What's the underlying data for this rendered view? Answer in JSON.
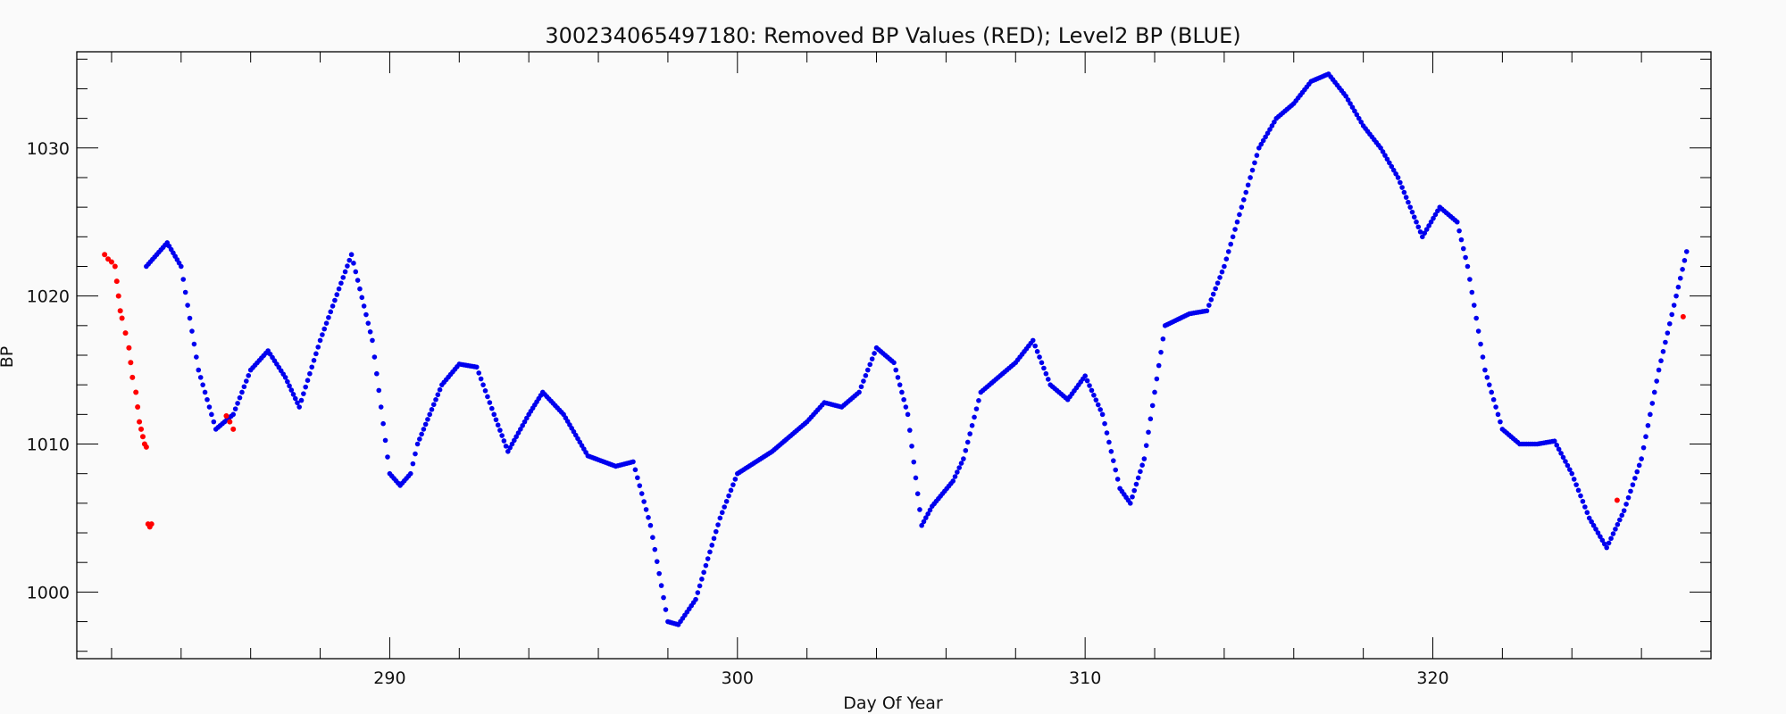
{
  "chart_data": {
    "type": "scatter",
    "title": "300234065497180: Removed BP Values (RED); Level2 BP (BLUE)",
    "xlabel": "Day Of Year",
    "ylabel": "BP",
    "xlim": [
      281.0,
      328.0
    ],
    "ylim": [
      995.5,
      1036.5
    ],
    "x_ticks": [
      290,
      300,
      310,
      320
    ],
    "y_ticks": [
      1000,
      1010,
      1020,
      1030
    ],
    "x_minor_step": 2,
    "y_minor_step": 2,
    "grid": false,
    "colors": {
      "removed": "#ff0000",
      "level2": "#0000ee"
    },
    "series": [
      {
        "name": "Removed BP Values (RED)",
        "color": "#ff0000",
        "points": [
          [
            281.8,
            1022.8
          ],
          [
            281.9,
            1022.5
          ],
          [
            282.0,
            1022.3
          ],
          [
            282.1,
            1022.0
          ],
          [
            282.15,
            1021.0
          ],
          [
            282.2,
            1020.0
          ],
          [
            282.25,
            1019.0
          ],
          [
            282.3,
            1018.5
          ],
          [
            282.4,
            1017.5
          ],
          [
            282.5,
            1016.5
          ],
          [
            282.55,
            1015.5
          ],
          [
            282.6,
            1014.5
          ],
          [
            282.7,
            1013.5
          ],
          [
            282.75,
            1012.5
          ],
          [
            282.8,
            1011.5
          ],
          [
            282.85,
            1011.0
          ],
          [
            282.9,
            1010.5
          ],
          [
            282.95,
            1010.0
          ],
          [
            283.0,
            1009.8
          ],
          [
            283.05,
            1004.6
          ],
          [
            283.1,
            1004.4
          ],
          [
            283.15,
            1004.6
          ],
          [
            285.3,
            1011.9
          ],
          [
            285.4,
            1011.5
          ],
          [
            285.5,
            1011.0
          ],
          [
            325.3,
            1006.2
          ],
          [
            327.2,
            1018.6
          ]
        ]
      },
      {
        "name": "Level2 BP (BLUE)",
        "color": "#0000ee",
        "curve": [
          [
            283.0,
            1022.0
          ],
          [
            283.6,
            1023.6
          ],
          [
            284.0,
            1022.0
          ],
          [
            284.5,
            1015.0
          ],
          [
            285.0,
            1011.0
          ],
          [
            285.5,
            1012.0
          ],
          [
            286.0,
            1015.0
          ],
          [
            286.5,
            1016.3
          ],
          [
            287.0,
            1014.5
          ],
          [
            287.4,
            1012.5
          ],
          [
            288.0,
            1017.0
          ],
          [
            288.9,
            1022.8
          ],
          [
            289.5,
            1017.0
          ],
          [
            290.0,
            1008.0
          ],
          [
            290.3,
            1007.2
          ],
          [
            290.6,
            1008.0
          ],
          [
            290.8,
            1010.0
          ],
          [
            291.5,
            1014.0
          ],
          [
            292.0,
            1015.4
          ],
          [
            292.5,
            1015.2
          ],
          [
            293.0,
            1012.0
          ],
          [
            293.4,
            1009.5
          ],
          [
            294.0,
            1012.0
          ],
          [
            294.4,
            1013.5
          ],
          [
            295.0,
            1012.0
          ],
          [
            295.7,
            1009.2
          ],
          [
            296.5,
            1008.5
          ],
          [
            297.0,
            1008.8
          ],
          [
            297.5,
            1004.5
          ],
          [
            298.0,
            998.0
          ],
          [
            298.3,
            997.8
          ],
          [
            298.8,
            999.5
          ],
          [
            299.5,
            1005.0
          ],
          [
            300.0,
            1008.0
          ],
          [
            301.0,
            1009.5
          ],
          [
            302.0,
            1011.5
          ],
          [
            302.5,
            1012.8
          ],
          [
            303.0,
            1012.5
          ],
          [
            303.5,
            1013.5
          ],
          [
            304.0,
            1016.5
          ],
          [
            304.5,
            1015.5
          ],
          [
            304.9,
            1012.0
          ],
          [
            305.3,
            1004.5
          ],
          [
            305.6,
            1005.8
          ],
          [
            306.2,
            1007.5
          ],
          [
            306.5,
            1009.0
          ],
          [
            307.0,
            1013.5
          ],
          [
            307.5,
            1014.5
          ],
          [
            308.0,
            1015.5
          ],
          [
            308.5,
            1017.0
          ],
          [
            309.0,
            1014.0
          ],
          [
            309.5,
            1013.0
          ],
          [
            310.0,
            1014.6
          ],
          [
            310.5,
            1012.0
          ],
          [
            311.0,
            1007.0
          ],
          [
            311.3,
            1006.0
          ],
          [
            311.7,
            1009.0
          ],
          [
            312.3,
            1018.0
          ],
          [
            313.0,
            1018.8
          ],
          [
            313.5,
            1019.0
          ],
          [
            314.0,
            1022.0
          ],
          [
            314.5,
            1026.0
          ],
          [
            315.0,
            1030.0
          ],
          [
            315.5,
            1032.0
          ],
          [
            316.0,
            1033.0
          ],
          [
            316.5,
            1034.5
          ],
          [
            317.0,
            1035.0
          ],
          [
            317.5,
            1033.5
          ],
          [
            318.0,
            1031.5
          ],
          [
            318.5,
            1030.0
          ],
          [
            319.0,
            1028.0
          ],
          [
            319.7,
            1024.0
          ],
          [
            320.2,
            1026.0
          ],
          [
            320.7,
            1025.0
          ],
          [
            321.0,
            1022.0
          ],
          [
            321.5,
            1015.0
          ],
          [
            322.0,
            1011.0
          ],
          [
            322.5,
            1010.0
          ],
          [
            323.0,
            1010.0
          ],
          [
            323.5,
            1010.2
          ],
          [
            324.0,
            1008.0
          ],
          [
            324.5,
            1005.0
          ],
          [
            325.0,
            1003.0
          ],
          [
            325.5,
            1005.5
          ],
          [
            326.0,
            1009.0
          ],
          [
            326.5,
            1015.0
          ],
          [
            327.0,
            1020.0
          ],
          [
            327.3,
            1023.0
          ]
        ]
      }
    ]
  }
}
